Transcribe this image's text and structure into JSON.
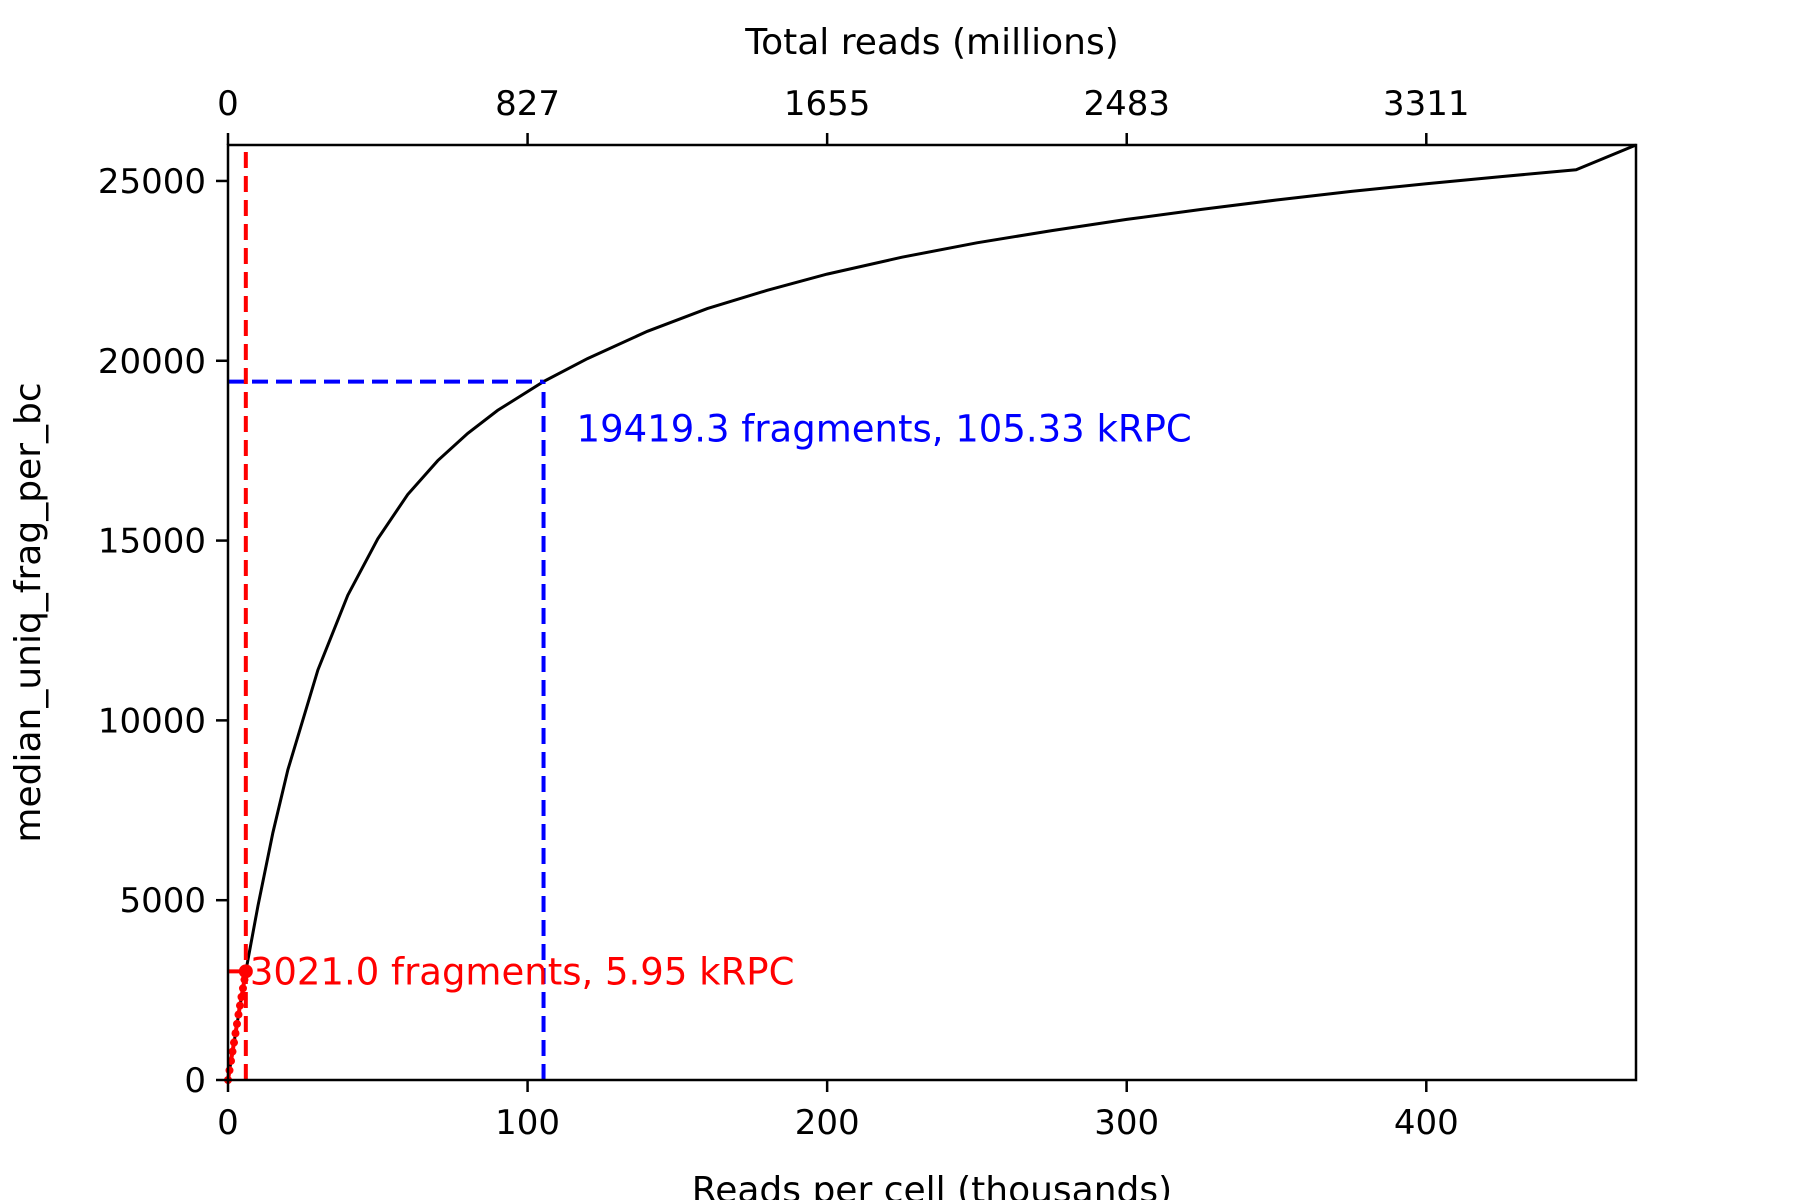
{
  "chart_data": {
    "type": "line",
    "xlabel": "Reads per cell (thousands)",
    "ylabel": "median_uniq_frag_per_bc",
    "top_xlabel": "Total reads (millions)",
    "xlim": [
      0,
      470
    ],
    "ylim": [
      0,
      26000
    ],
    "x_ticks": [
      0,
      100,
      200,
      300,
      400
    ],
    "x_tick_labels": [
      "0",
      "100",
      "200",
      "300",
      "400"
    ],
    "y_ticks": [
      0,
      5000,
      10000,
      15000,
      20000,
      25000
    ],
    "y_tick_labels": [
      "0",
      "5000",
      "10000",
      "15000",
      "20000",
      "25000"
    ],
    "top_ticks": [
      0,
      100,
      200,
      300,
      400
    ],
    "top_tick_labels": [
      "0",
      "827",
      "1655",
      "2483",
      "3311"
    ],
    "grid": false,
    "legend": "none",
    "series": [
      {
        "color": "#000000",
        "x": [
          0,
          2,
          4,
          5.95,
          10,
          15,
          20,
          30,
          40,
          50,
          60,
          70,
          80,
          90,
          105.33,
          120,
          140,
          160,
          180,
          200,
          225,
          250,
          275,
          300,
          325,
          350,
          375,
          400,
          425,
          450,
          470
        ],
        "y": [
          0,
          1040,
          2060,
          3021,
          4850,
          6880,
          8630,
          11400,
          13480,
          15050,
          16280,
          17220,
          17980,
          18620,
          19420,
          20060,
          20820,
          21450,
          21960,
          22410,
          22880,
          23280,
          23620,
          23930,
          24210,
          24470,
          24710,
          24920,
          25120,
          25310,
          26000
        ]
      }
    ],
    "red_markers": {
      "color": "#ff0000",
      "x": [
        0,
        0.5,
        1,
        1.5,
        2,
        2.5,
        3,
        3.5,
        4,
        4.5,
        5,
        5.5,
        5.95
      ],
      "y": [
        0,
        270,
        530,
        790,
        1040,
        1300,
        1560,
        1820,
        2070,
        2310,
        2550,
        2790,
        3021
      ]
    },
    "annotations": [
      {
        "text": "19419.3 fragments, 105.33 kRPC",
        "color": "#0000ff",
        "x": 105.33,
        "y": 19419.3
      },
      {
        "text": "3021.0 fragments, 5.95 kRPC",
        "color": "#ff0000",
        "x": 5.95,
        "y": 3021.0
      }
    ]
  }
}
